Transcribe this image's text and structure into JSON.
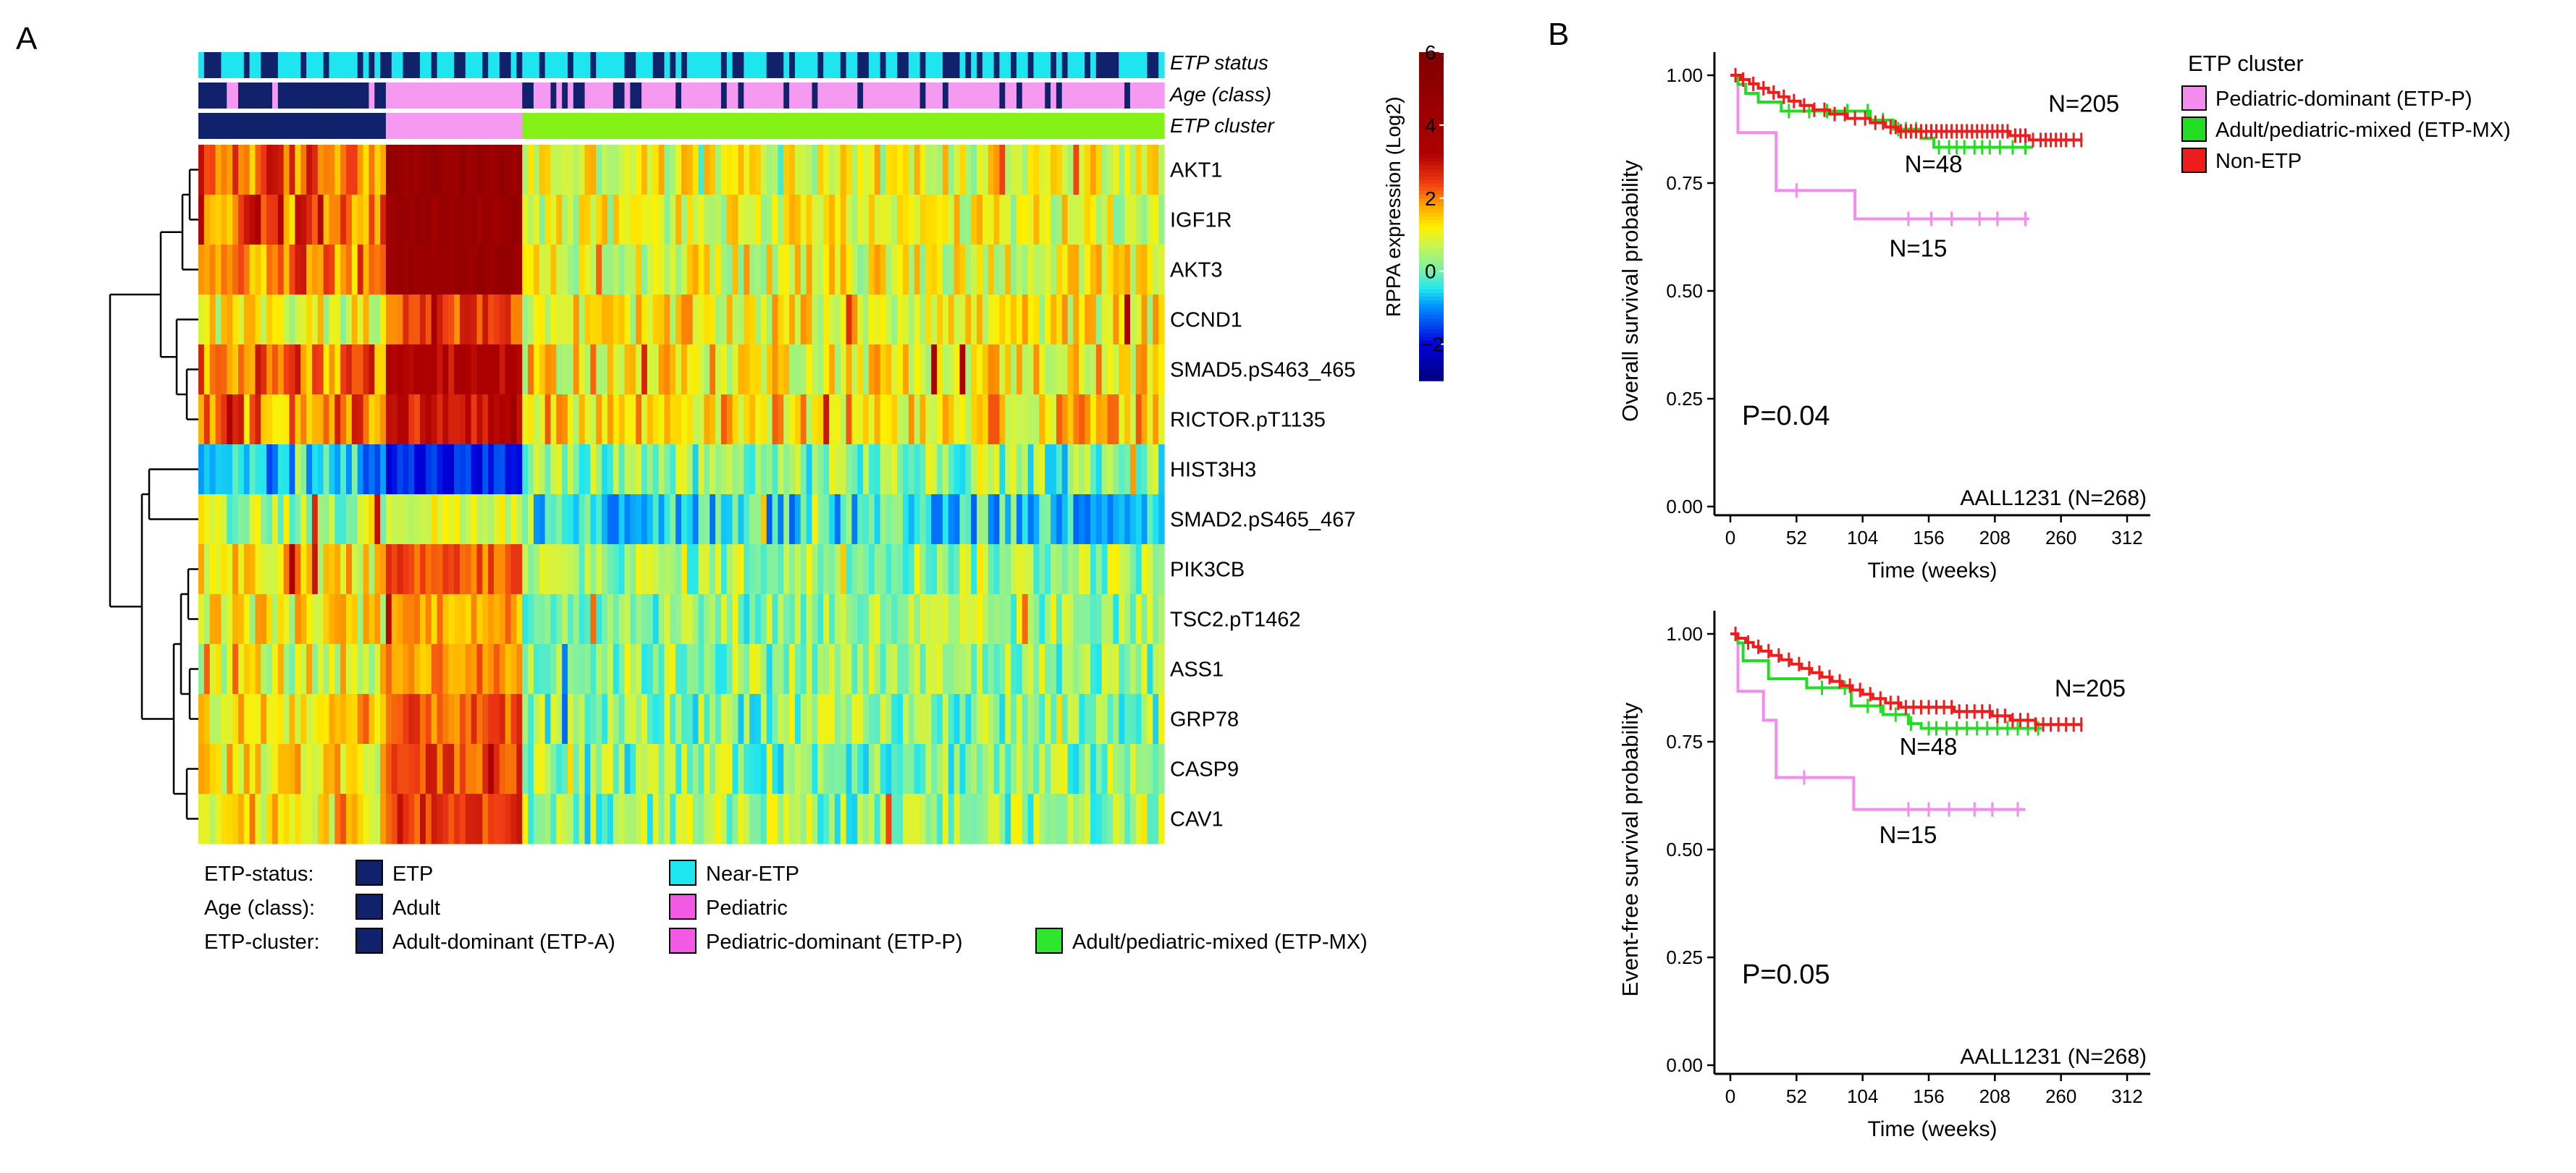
{
  "panels": {
    "a_label": "A",
    "b_label": "B"
  },
  "heatmap": {
    "annotation_tracks": [
      "ETP status",
      "Age (class)",
      "ETP cluster"
    ],
    "proteins": [
      "AKT1",
      "IGF1R",
      "AKT3",
      "CCND1",
      "SMAD5.pS463_465",
      "RICTOR.pT1135",
      "HIST3H3",
      "SMAD2.pS465_467",
      "PIK3CB",
      "TSC2.pT1462",
      "ASS1",
      "GRP78",
      "CASP9",
      "CAV1"
    ],
    "colorbar": {
      "label": "RPPA expression (Log2)",
      "ticks": [
        "6",
        "4",
        "2",
        "0",
        "−2"
      ],
      "tick_values": [
        6,
        4,
        2,
        0,
        -2
      ],
      "range": [
        -3,
        6
      ]
    },
    "legend": {
      "rows": [
        {
          "label": "ETP-status:",
          "items": [
            {
              "text": "ETP",
              "color": "#10226b"
            },
            {
              "text": "Near-ETP",
              "color": "#1ee6f0"
            }
          ]
        },
        {
          "label": "Age (class):",
          "items": [
            {
              "text": "Adult",
              "color": "#10226b"
            },
            {
              "text": "Pediatric",
              "color": "#f25ae6"
            }
          ]
        },
        {
          "label": "ETP-cluster:",
          "items": [
            {
              "text": "Adult-dominant (ETP-A)",
              "color": "#10226b"
            },
            {
              "text": "Pediatric-dominant (ETP-P)",
              "color": "#f25ae6"
            },
            {
              "text": "Adult/pediatric-mixed (ETP-MX)",
              "color": "#2ee62e"
            }
          ]
        }
      ]
    },
    "cluster_colors": {
      "etp_a": "#10226b",
      "etp_p": "#f59af0",
      "etp_mx": "#84f216"
    },
    "status_colors": {
      "etp": "#10226b",
      "near_etp": "#1ee6f0"
    },
    "age_colors": {
      "adult": "#10226b",
      "pediatric": "#f59af0"
    }
  },
  "km_legend": {
    "title": "ETP cluster",
    "entries": [
      {
        "text": "Pediatric-dominant (ETP-P)",
        "color": "#f48cf0"
      },
      {
        "text": "Adult/pediatric-mixed (ETP-MX)",
        "color": "#22dd22"
      },
      {
        "text": "Non-ETP",
        "color": "#ee1c1c"
      }
    ]
  },
  "chart_data": [
    {
      "type": "line",
      "title": "",
      "xlabel": "Time (weeks)",
      "ylabel": "Overall survival probability",
      "xlim": [
        0,
        312
      ],
      "ylim": [
        0,
        1
      ],
      "xticks": [
        "0",
        "52",
        "104",
        "156",
        "208",
        "260",
        "312"
      ],
      "xtick_values": [
        0,
        52,
        104,
        156,
        208,
        260,
        312
      ],
      "yticks": [
        "0.00",
        "0.25",
        "0.50",
        "0.75",
        "1.00"
      ],
      "ytick_values": [
        0,
        0.25,
        0.5,
        0.75,
        1
      ],
      "p_value": "P=0.04",
      "study": "AALL1231 (N=268)",
      "series": [
        {
          "name": "Pediatric-dominant (ETP-P)",
          "n_label": "N=15",
          "color": "#f48cf0",
          "steps": [
            [
              0,
              1.0
            ],
            [
              6,
              0.867
            ],
            [
              36,
              0.733
            ],
            [
              50,
              0.733
            ],
            [
              98,
              0.667
            ],
            [
              235,
              0.667
            ]
          ],
          "censor": [
            52,
            140,
            158,
            174,
            196,
            210,
            232
          ]
        },
        {
          "name": "Adult/pediatric-mixed (ETP-MX)",
          "n_label": "N=48",
          "color": "#22dd22",
          "steps": [
            [
              0,
              1.0
            ],
            [
              6,
              0.979
            ],
            [
              12,
              0.958
            ],
            [
              22,
              0.938
            ],
            [
              40,
              0.917
            ],
            [
              110,
              0.896
            ],
            [
              128,
              0.875
            ],
            [
              150,
              0.854
            ],
            [
              160,
              0.833
            ],
            [
              238,
              0.833
            ]
          ],
          "censor": [
            46,
            62,
            76,
            92,
            108,
            120,
            132,
            138,
            146,
            164,
            172,
            178,
            184,
            192,
            198,
            204,
            212,
            222,
            232
          ]
        },
        {
          "name": "Non-ETP",
          "n_label": "N=205",
          "color": "#ee1c1c",
          "steps": [
            [
              0,
              1.0
            ],
            [
              8,
              0.99
            ],
            [
              15,
              0.98
            ],
            [
              22,
              0.97
            ],
            [
              30,
              0.96
            ],
            [
              38,
              0.95
            ],
            [
              46,
              0.94
            ],
            [
              55,
              0.93
            ],
            [
              65,
              0.92
            ],
            [
              78,
              0.91
            ],
            [
              92,
              0.9
            ],
            [
              110,
              0.89
            ],
            [
              122,
              0.88
            ],
            [
              132,
              0.87
            ],
            [
              220,
              0.86
            ],
            [
              235,
              0.85
            ],
            [
              277,
              0.85
            ]
          ],
          "censor": [
            4,
            10,
            18,
            26,
            34,
            42,
            50,
            58,
            66,
            74,
            82,
            90,
            98,
            106,
            114,
            120,
            126,
            130,
            134,
            138,
            142,
            146,
            150,
            154,
            158,
            162,
            166,
            170,
            174,
            178,
            182,
            186,
            190,
            194,
            198,
            202,
            206,
            210,
            214,
            218,
            224,
            228,
            232,
            238,
            244,
            248,
            252,
            256,
            260,
            264,
            270,
            276
          ]
        }
      ],
      "n_label_positions": [
        [
          125,
          0.58
        ],
        [
          137,
          0.775
        ],
        [
          250,
          0.915
        ]
      ]
    },
    {
      "type": "line",
      "title": "",
      "xlabel": "Time (weeks)",
      "ylabel": "Event-free survival probability",
      "xlim": [
        0,
        312
      ],
      "ylim": [
        0,
        1
      ],
      "xticks": [
        "0",
        "52",
        "104",
        "156",
        "208",
        "260",
        "312"
      ],
      "xtick_values": [
        0,
        52,
        104,
        156,
        208,
        260,
        312
      ],
      "yticks": [
        "0.00",
        "0.25",
        "0.50",
        "0.75",
        "1.00"
      ],
      "ytick_values": [
        0,
        0.25,
        0.5,
        0.75,
        1
      ],
      "p_value": "P=0.05",
      "study": "AALL1231 (N=268)",
      "series": [
        {
          "name": "Pediatric-dominant (ETP-P)",
          "n_label": "N=15",
          "color": "#f48cf0",
          "steps": [
            [
              0,
              1.0
            ],
            [
              6,
              0.867
            ],
            [
              26,
              0.8
            ],
            [
              36,
              0.667
            ],
            [
              97,
              0.593
            ],
            [
              232,
              0.593
            ]
          ],
          "censor": [
            58,
            140,
            156,
            172,
            192,
            206,
            226
          ]
        },
        {
          "name": "Adult/pediatric-mixed (ETP-MX)",
          "n_label": "N=48",
          "color": "#22dd22",
          "steps": [
            [
              0,
              1.0
            ],
            [
              6,
              0.979
            ],
            [
              10,
              0.938
            ],
            [
              30,
              0.896
            ],
            [
              60,
              0.875
            ],
            [
              95,
              0.833
            ],
            [
              120,
              0.813
            ],
            [
              140,
              0.792
            ],
            [
              150,
              0.781
            ],
            [
              245,
              0.781
            ]
          ],
          "censor": [
            72,
            90,
            108,
            118,
            130,
            142,
            156,
            162,
            170,
            178,
            186,
            194,
            202,
            210,
            218,
            226,
            234,
            242
          ]
        },
        {
          "name": "Non-ETP",
          "n_label": "N=205",
          "color": "#ee1c1c",
          "steps": [
            [
              0,
              1.0
            ],
            [
              6,
              0.99
            ],
            [
              12,
              0.98
            ],
            [
              18,
              0.97
            ],
            [
              24,
              0.96
            ],
            [
              32,
              0.95
            ],
            [
              40,
              0.94
            ],
            [
              48,
              0.93
            ],
            [
              56,
              0.92
            ],
            [
              64,
              0.91
            ],
            [
              72,
              0.9
            ],
            [
              80,
              0.89
            ],
            [
              88,
              0.88
            ],
            [
              96,
              0.87
            ],
            [
              104,
              0.86
            ],
            [
              112,
              0.85
            ],
            [
              122,
              0.84
            ],
            [
              134,
              0.83
            ],
            [
              176,
              0.82
            ],
            [
              206,
              0.81
            ],
            [
              220,
              0.8
            ],
            [
              240,
              0.79
            ],
            [
              277,
              0.79
            ]
          ],
          "censor": [
            4,
            14,
            22,
            30,
            38,
            46,
            54,
            62,
            70,
            78,
            86,
            94,
            102,
            110,
            118,
            126,
            132,
            138,
            144,
            150,
            156,
            162,
            168,
            174,
            180,
            186,
            192,
            198,
            204,
            210,
            216,
            222,
            228,
            234,
            240,
            246,
            252,
            258,
            264,
            270,
            276
          ]
        }
      ],
      "n_label_positions": [
        [
          117,
          0.515
        ],
        [
          133,
          0.72
        ],
        [
          255,
          0.855
        ]
      ]
    }
  ]
}
